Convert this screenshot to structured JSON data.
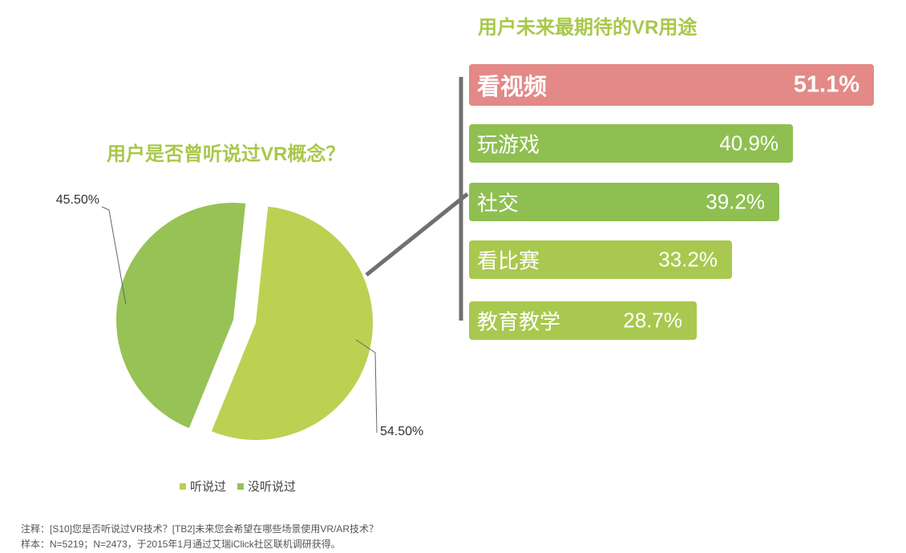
{
  "pie_title": "用户是否曾听说过VR概念？",
  "bar_title": "用户未来最期待的VR用途",
  "colors": {
    "pie_heard": "#bcd152",
    "pie_not_heard": "#97c255",
    "bar_top": "#e38987",
    "bar_green_dark": "#8fbf51",
    "bar_green_light": "#a9c84f",
    "title_green": "#a8c84a",
    "connector": "#707070"
  },
  "chart_data": [
    {
      "type": "pie",
      "title": "用户是否曾听说过VR概念？",
      "slices": [
        {
          "label": "听说过",
          "value": 54.5,
          "display": "54.50%"
        },
        {
          "label": "没听说过",
          "value": 45.5,
          "display": "45.50%"
        }
      ],
      "legend": [
        "听说过",
        "没听说过"
      ],
      "legend_position": "bottom"
    },
    {
      "type": "bar",
      "orientation": "horizontal",
      "title": "用户未来最期待的VR用途",
      "categories": [
        "看视频",
        "玩游戏",
        "社交",
        "看比赛",
        "教育教学"
      ],
      "values": [
        51.1,
        40.9,
        39.2,
        33.2,
        28.7
      ],
      "value_labels": [
        "51.1%",
        "40.9%",
        "39.2%",
        "33.2%",
        "28.7%"
      ]
    }
  ],
  "notes": {
    "line1": "注释：[S10]您是否听说过VR技术？[TB2]未来您会希望在哪些场景使用VR/AR技术？",
    "line2": "样本：N=5219；N=2473，于2015年1月通过艾瑞iClick社区联机调研获得。"
  }
}
